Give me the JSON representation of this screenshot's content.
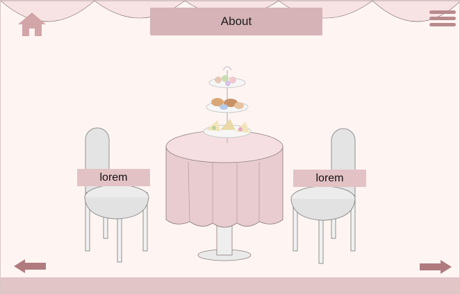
{
  "header": {
    "title": "About"
  },
  "labels": {
    "left_chair": "lorem",
    "right_chair": "lorem"
  },
  "icons": {
    "home": "home-icon",
    "menu": "menu-icon",
    "previous": "arrow-left-icon",
    "next": "arrow-right-icon"
  },
  "colors": {
    "background": "#fef5f2",
    "accent": "#d5b3b6",
    "icon": "#b88a8d",
    "footer": "#e2c5c7"
  }
}
